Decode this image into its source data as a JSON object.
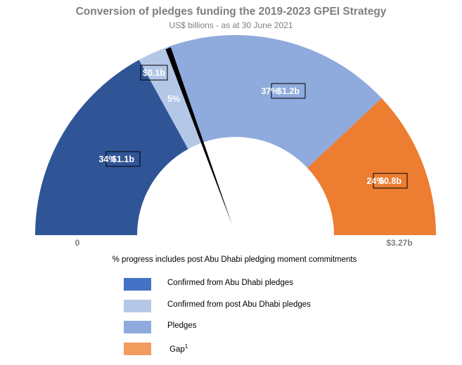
{
  "chart_data": {
    "type": "gauge",
    "title": "Conversion of pledges funding the 2019-2023 GPEI Strategy",
    "subtitle": "US$ billions - as at 30 June 2021",
    "axis_min_label": "0",
    "axis_max_label": "$3.27b",
    "segments": [
      {
        "name": "Confirmed from Abu Dhabi pledges",
        "percent": 34,
        "percent_label": "34%",
        "value_label": "$1.1b",
        "color": "#2F5597",
        "legend_color": "#4472C4"
      },
      {
        "name": "Confirmed from post Abu Dhabi pledges",
        "percent": 5,
        "percent_label": "5%",
        "value_label": "$0.1b",
        "color": "#B4C7E7",
        "legend_color": "#B4C7E7"
      },
      {
        "name": "Pledges",
        "percent": 37,
        "percent_label": "37%",
        "value_label": "$1.2b",
        "color": "#8FAADC",
        "legend_color": "#8FAADC"
      },
      {
        "name": "Gap",
        "percent": 24,
        "percent_label": "24%",
        "value_label": "$0.8b",
        "color": "#ED7D31",
        "legend_color": "#F19B5F"
      }
    ],
    "needle_percent": 39,
    "note": "% progress includes post Abu Dhabi pledging moment commitments",
    "legend_position": "bottom",
    "gap_superscript": "1"
  }
}
